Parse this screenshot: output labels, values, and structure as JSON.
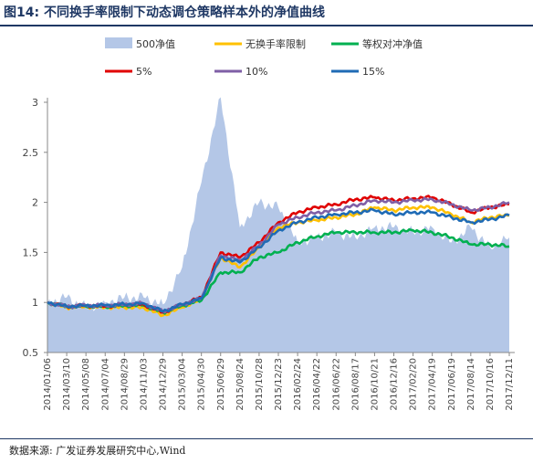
{
  "title": "图14:  不同换手率限制下动态调仓策略样本外的净值曲线",
  "source": "数据来源:  广发证券发展研究中心,Wind",
  "chart_data": {
    "type": "area",
    "ylim": [
      0.5,
      3.0
    ],
    "yticks": [
      "0.5",
      "1",
      "1.5",
      "2",
      "2.5",
      "3"
    ],
    "x_categories": [
      "2014/01/06",
      "2014/03/10",
      "2014/05/08",
      "2014/07/04",
      "2014/08/29",
      "2014/11/03",
      "2014/12/29",
      "2015/03/04",
      "2015/04/30",
      "2015/06/29",
      "2015/08/24",
      "2015/10/28",
      "2015/12/23",
      "2016/02/24",
      "2016/04/22",
      "2016/06/22",
      "2016/08/17",
      "2016/10/21",
      "2016/12/16",
      "2017/02/20",
      "2017/04/19",
      "2017/06/19",
      "2017/08/14",
      "2017/10/16",
      "2017/12/11"
    ],
    "grid": false,
    "legend_position": "top",
    "series": [
      {
        "name": "500净值",
        "type": "area",
        "color": "#b4c7e7",
        "values": [
          1.0,
          1.05,
          0.95,
          1.0,
          1.05,
          1.05,
          0.98,
          1.35,
          2.2,
          3.05,
          1.75,
          2.0,
          1.95,
          1.6,
          1.65,
          1.7,
          1.65,
          1.75,
          1.75,
          1.7,
          1.75,
          1.6,
          1.75,
          1.55,
          1.65
        ]
      },
      {
        "name": "无换手率限制",
        "type": "line",
        "color": "#ffc000",
        "values": [
          1.0,
          0.95,
          0.96,
          0.95,
          0.95,
          0.95,
          0.87,
          0.95,
          1.03,
          1.45,
          1.35,
          1.55,
          1.75,
          1.8,
          1.82,
          1.85,
          1.88,
          1.95,
          1.92,
          1.95,
          1.95,
          1.88,
          1.8,
          1.85,
          1.87
        ]
      },
      {
        "name": "等权对冲净值",
        "type": "line",
        "color": "#00b050",
        "values": [
          1.0,
          0.96,
          0.96,
          0.96,
          0.97,
          0.97,
          0.9,
          0.97,
          1.02,
          1.3,
          1.3,
          1.45,
          1.5,
          1.6,
          1.66,
          1.7,
          1.7,
          1.7,
          1.7,
          1.72,
          1.7,
          1.65,
          1.58,
          1.58,
          1.56
        ]
      },
      {
        "name": "5%",
        "type": "line",
        "color": "#e00000",
        "values": [
          1.0,
          0.96,
          0.97,
          0.96,
          0.98,
          0.98,
          0.9,
          0.98,
          1.05,
          1.5,
          1.45,
          1.6,
          1.8,
          1.9,
          1.95,
          1.98,
          2.03,
          2.05,
          2.02,
          2.04,
          2.05,
          1.98,
          1.9,
          1.95,
          1.98
        ]
      },
      {
        "name": "10%",
        "type": "line",
        "color": "#7f5fa6",
        "values": [
          1.0,
          0.96,
          0.97,
          0.97,
          0.98,
          0.99,
          0.91,
          0.98,
          1.04,
          1.47,
          1.42,
          1.57,
          1.78,
          1.85,
          1.9,
          1.92,
          1.97,
          2.02,
          2.0,
          2.02,
          2.03,
          1.98,
          1.92,
          1.95,
          2.0
        ]
      },
      {
        "name": "15%",
        "type": "line",
        "color": "#1f6bb5",
        "values": [
          1.0,
          0.96,
          0.97,
          0.97,
          0.98,
          0.99,
          0.91,
          0.98,
          1.04,
          1.45,
          1.4,
          1.55,
          1.72,
          1.8,
          1.85,
          1.88,
          1.9,
          1.92,
          1.88,
          1.9,
          1.9,
          1.85,
          1.8,
          1.83,
          1.87
        ]
      }
    ]
  }
}
